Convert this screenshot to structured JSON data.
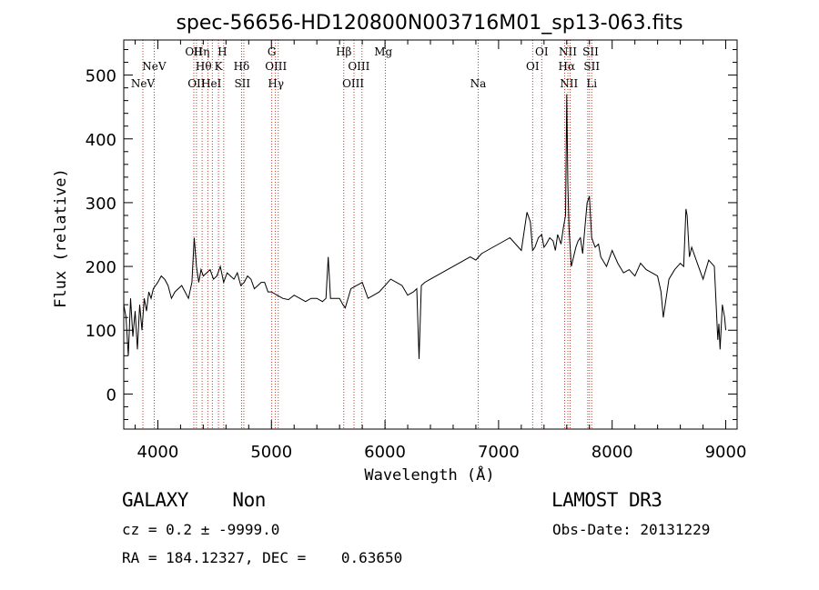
{
  "chart_data": {
    "type": "line",
    "title": "spec-56656-HD120800N003716M01_sp13-063.fits",
    "xlabel": "Wavelength (Å)",
    "ylabel": "Flux (relative)",
    "xlim": [
      3700,
      9100
    ],
    "ylim": [
      -55,
      555
    ],
    "x_ticks": [
      4000,
      5000,
      6000,
      7000,
      8000,
      9000
    ],
    "y_ticks": [
      0,
      100,
      200,
      300,
      400,
      500
    ],
    "series": [
      {
        "color": "#000000",
        "x": [
          3700,
          3720,
          3740,
          3760,
          3780,
          3800,
          3820,
          3840,
          3860,
          3880,
          3900,
          3920,
          3940,
          3960,
          3980,
          4000,
          4030,
          4060,
          4090,
          4120,
          4150,
          4180,
          4210,
          4240,
          4270,
          4300,
          4320,
          4340,
          4360,
          4380,
          4400,
          4430,
          4460,
          4490,
          4520,
          4550,
          4580,
          4610,
          4640,
          4670,
          4700,
          4730,
          4760,
          4790,
          4820,
          4850,
          4880,
          4910,
          4940,
          4970,
          5000,
          5050,
          5100,
          5150,
          5200,
          5250,
          5300,
          5350,
          5400,
          5450,
          5480,
          5500,
          5520,
          5550,
          5600,
          5630,
          5650,
          5700,
          5750,
          5800,
          5850,
          5900,
          5950,
          6000,
          6050,
          6100,
          6150,
          6200,
          6250,
          6280,
          6300,
          6320,
          6350,
          6400,
          6450,
          6500,
          6550,
          6600,
          6650,
          6700,
          6750,
          6800,
          6850,
          6900,
          6950,
          7000,
          7050,
          7100,
          7150,
          7200,
          7250,
          7280,
          7300,
          7320,
          7350,
          7380,
          7400,
          7420,
          7450,
          7480,
          7500,
          7520,
          7550,
          7570,
          7590,
          7600,
          7610,
          7620,
          7640,
          7660,
          7680,
          7700,
          7720,
          7740,
          7760,
          7780,
          7800,
          7820,
          7850,
          7880,
          7900,
          7950,
          8000,
          8050,
          8100,
          8150,
          8200,
          8250,
          8300,
          8350,
          8400,
          8430,
          8450,
          8500,
          8550,
          8600,
          8630,
          8650,
          8660,
          8680,
          8700,
          8750,
          8800,
          8850,
          8900,
          8930,
          8940,
          8950,
          8970,
          8990,
          9000
        ],
        "y": [
          140,
          120,
          60,
          150,
          90,
          130,
          70,
          140,
          100,
          150,
          130,
          160,
          150,
          165,
          170,
          175,
          185,
          180,
          170,
          150,
          160,
          165,
          170,
          160,
          150,
          175,
          245,
          200,
          175,
          195,
          185,
          190,
          195,
          180,
          185,
          200,
          175,
          190,
          185,
          180,
          190,
          170,
          175,
          185,
          180,
          165,
          170,
          175,
          175,
          160,
          160,
          155,
          150,
          148,
          155,
          150,
          145,
          150,
          150,
          145,
          150,
          215,
          150,
          150,
          150,
          140,
          135,
          165,
          170,
          175,
          150,
          155,
          160,
          170,
          180,
          175,
          170,
          155,
          160,
          165,
          55,
          170,
          175,
          180,
          185,
          190,
          195,
          200,
          205,
          210,
          215,
          210,
          220,
          225,
          230,
          235,
          240,
          245,
          235,
          225,
          285,
          270,
          225,
          230,
          245,
          250,
          230,
          235,
          245,
          240,
          225,
          250,
          235,
          260,
          280,
          470,
          330,
          260,
          200,
          215,
          230,
          240,
          245,
          220,
          260,
          300,
          310,
          245,
          230,
          235,
          215,
          200,
          225,
          205,
          190,
          195,
          185,
          205,
          195,
          190,
          185,
          160,
          120,
          180,
          195,
          205,
          200,
          290,
          280,
          215,
          230,
          205,
          180,
          210,
          200,
          85,
          110,
          70,
          140,
          120,
          100
        ]
      }
    ],
    "annotations": [
      {
        "name": "NeV",
        "x": 3868,
        "row": 2
      },
      {
        "name": "NeV",
        "x": 3968,
        "row": 1
      },
      {
        "name": "OII",
        "x": 4317,
        "row": 0
      },
      {
        "name": "OII",
        "x": 4340,
        "row": 2
      },
      {
        "name": "Hη",
        "x": 4385,
        "row": 0
      },
      {
        "name": "Hθ",
        "x": 4403,
        "row": 1
      },
      {
        "name": "HeI",
        "x": 4471,
        "row": 2
      },
      {
        "name": "K",
        "x": 4534,
        "row": 1
      },
      {
        "name": "H",
        "x": 4568,
        "row": 0
      },
      {
        "name": "Hδ",
        "x": 4737,
        "row": 1
      },
      {
        "name": "SII",
        "x": 4744,
        "row": 2
      },
      {
        "name": "G",
        "x": 5003,
        "row": 0
      },
      {
        "name": "OIII",
        "x": 5040,
        "row": 1
      },
      {
        "name": "Hγ",
        "x": 5040,
        "row": 2
      },
      {
        "name": "Hβ",
        "x": 5637,
        "row": 0
      },
      {
        "name": "OIII",
        "x": 5770,
        "row": 1
      },
      {
        "name": "OIII",
        "x": 5720,
        "row": 2
      },
      {
        "name": "Mg",
        "x": 5985,
        "row": 0
      },
      {
        "name": "Na",
        "x": 6820,
        "row": 2
      },
      {
        "name": "OI",
        "x": 7380,
        "row": 0
      },
      {
        "name": "OI",
        "x": 7300,
        "row": 1
      },
      {
        "name": "NII",
        "x": 7610,
        "row": 0
      },
      {
        "name": "Hα",
        "x": 7600,
        "row": 1
      },
      {
        "name": "NII",
        "x": 7620,
        "row": 2
      },
      {
        "name": "SII",
        "x": 7810,
        "row": 0
      },
      {
        "name": "SII",
        "x": 7820,
        "row": 1
      },
      {
        "name": "Li",
        "x": 7820,
        "row": 2
      }
    ],
    "line_positions": [
      3868,
      3968,
      4317,
      4340,
      4390,
      4440,
      4480,
      4534,
      4580,
      4737,
      4757,
      5003,
      5035,
      5060,
      5637,
      5727,
      5797,
      6003,
      6820,
      7300,
      7380,
      7582,
      7610,
      7630,
      7785,
      7800,
      7820
    ]
  },
  "info": {
    "class_label": "GALAXY    Non",
    "cz_label": "cz = 0.2 ± -9999.0",
    "coords_label": "RA = 184.12327, DEC =    0.63650",
    "survey_label": "LAMOST DR3",
    "obs_date_label": "Obs-Date: 20131229"
  }
}
